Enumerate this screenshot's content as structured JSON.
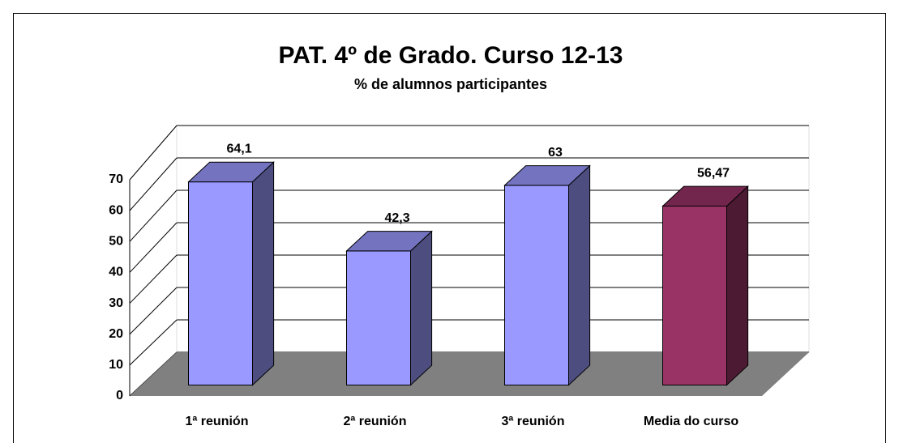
{
  "chart_data": {
    "type": "bar3d",
    "title": "PAT. 4º de Grado. Curso 12-13",
    "subtitle": "% de alumnos participantes",
    "categories": [
      "1ª reunión",
      "2ª reunión",
      "3ª reunión",
      "Media do curso"
    ],
    "values": [
      64.1,
      42.3,
      63,
      56.47
    ],
    "value_labels": [
      "64,1",
      "42,3",
      "63",
      "56,47"
    ],
    "colors": [
      "#9999ff",
      "#9999ff",
      "#9999ff",
      "#993366"
    ],
    "ylim": [
      0,
      70
    ],
    "yticks": [
      0,
      10,
      20,
      30,
      40,
      50,
      60,
      70
    ],
    "grid": true
  }
}
